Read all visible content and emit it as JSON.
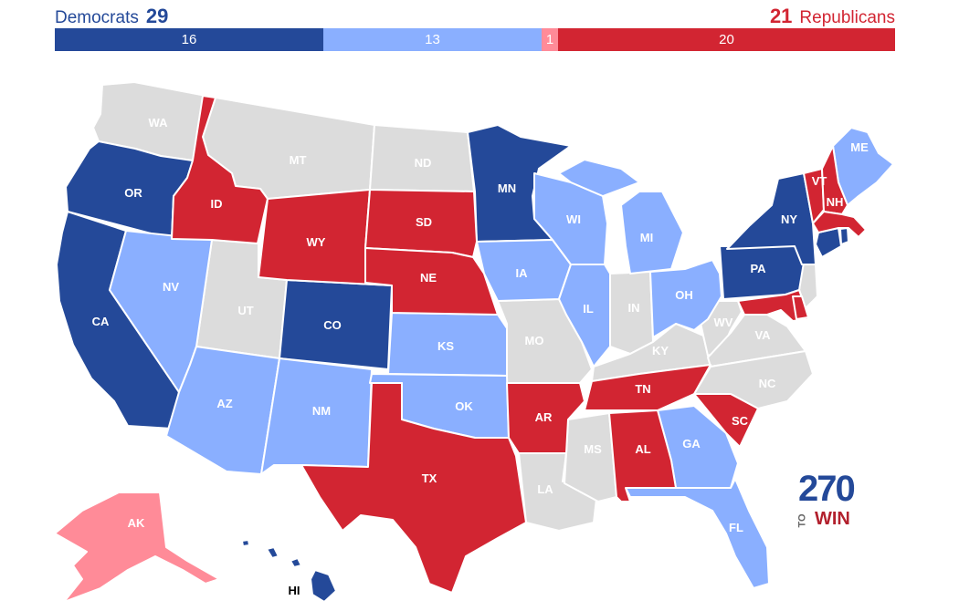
{
  "header": {
    "dem_label": "Democrats",
    "dem_total": "29",
    "rep_total": "21",
    "rep_label": "Republicans"
  },
  "bar": {
    "segments": [
      {
        "label": "16",
        "value": 16,
        "color": "#244999"
      },
      {
        "label": "13",
        "value": 13,
        "color": "#8aafff"
      },
      {
        "label": "1",
        "value": 1,
        "color": "#ff8b98"
      },
      {
        "label": "20",
        "value": 20,
        "color": "#d22532"
      }
    ]
  },
  "legend_colors": {
    "safe_dem": "#244999",
    "lean_dem": "#8aafff",
    "lean_rep": "#ff8b98",
    "safe_rep": "#d22532",
    "no_race": "#dcdcdc"
  },
  "states": {
    "WA": "WA",
    "OR": "OR",
    "CA": "CA",
    "ID": "ID",
    "NV": "NV",
    "MT": "MT",
    "WY": "WY",
    "UT": "UT",
    "AZ": "AZ",
    "CO": "CO",
    "NM": "NM",
    "ND": "ND",
    "SD": "SD",
    "NE": "NE",
    "KS": "KS",
    "OK": "OK",
    "TX": "TX",
    "MN": "MN",
    "IA": "IA",
    "MO": "MO",
    "AR": "AR",
    "LA": "LA",
    "WI": "WI",
    "IL": "IL",
    "MI": "MI",
    "IN": "IN",
    "OH": "OH",
    "KY": "KY",
    "TN": "TN",
    "MS": "MS",
    "AL": "AL",
    "GA": "GA",
    "FL": "FL",
    "SC": "SC",
    "NC": "NC",
    "VA": "VA",
    "WV": "WV",
    "PA": "PA",
    "NY": "NY",
    "VT": "VT",
    "NH": "NH",
    "ME": "ME",
    "AK": "AK",
    "HI": "HI"
  },
  "logo": {
    "number": "270",
    "to": "TO",
    "win": "WIN"
  }
}
